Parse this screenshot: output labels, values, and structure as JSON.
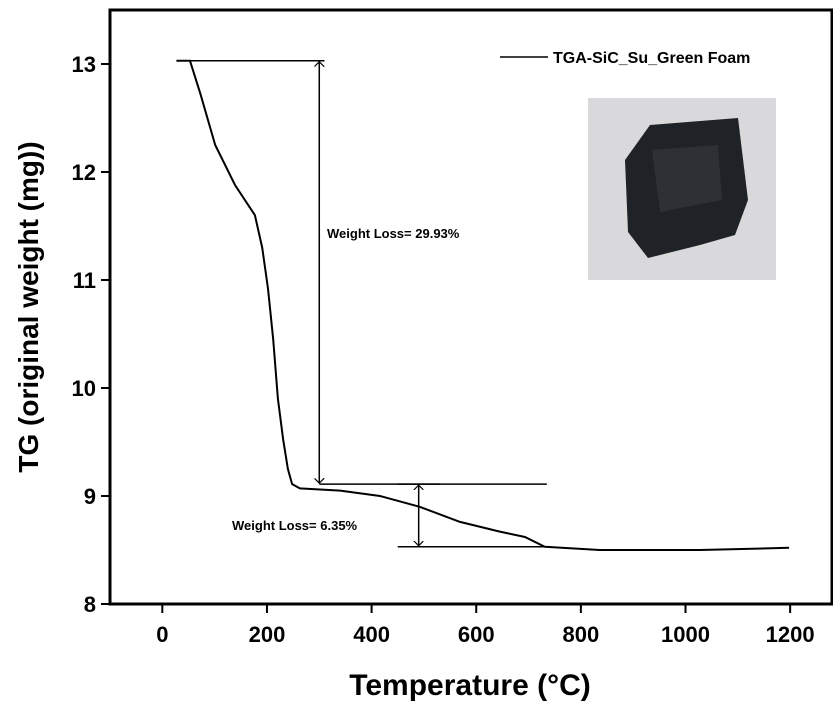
{
  "chart_data": {
    "type": "line",
    "x_label": "Temperature (°C)",
    "y_label": "TG (original weight (mg))",
    "xlim": [
      -100,
      1280
    ],
    "ylim": [
      8,
      13.5
    ],
    "xticks": [
      0,
      200,
      400,
      600,
      800,
      1000,
      1200
    ],
    "yticks": [
      8,
      9,
      10,
      11,
      12,
      13
    ],
    "legend": "upper right",
    "series": [
      {
        "name": "TGA-SiC_Su_Green Foam",
        "color": "#000000",
        "x": [
          27,
          53,
          73,
          101,
          139,
          177,
          191,
          202,
          212,
          221,
          231,
          240,
          248,
          263,
          340,
          416,
          492,
          569,
          645,
          693,
          731,
          836,
          1027,
          1198
        ],
        "values": [
          13.03,
          13.03,
          12.72,
          12.25,
          11.88,
          11.6,
          11.3,
          10.92,
          10.45,
          9.9,
          9.52,
          9.25,
          9.11,
          9.07,
          9.05,
          9.0,
          8.9,
          8.76,
          8.67,
          8.62,
          8.53,
          8.5,
          8.5,
          8.52
        ]
      }
    ],
    "annotations": [
      {
        "text": "Weight Loss= 29.93%",
        "arrow_x": 300,
        "y_from": 13.03,
        "y_to": 9.11,
        "line_x": [
          [
            30,
            310
          ],
          [
            300,
            530
          ]
        ]
      },
      {
        "text": "Weight Loss= 6.35%",
        "arrow_x": 490,
        "y_from": 9.11,
        "y_to": 8.53,
        "line_x": [
          [
            450,
            735
          ]
        ]
      }
    ]
  }
}
